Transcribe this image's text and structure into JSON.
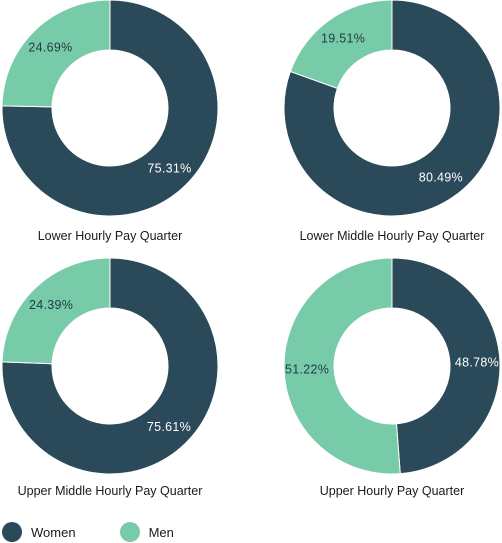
{
  "colors": {
    "Women": "#2b4a59",
    "Men": "#78cba8",
    "label_on_dark": "#ffffff",
    "label_on_light": "#1f3b48"
  },
  "legend": [
    {
      "name": "Women",
      "color": "#2b4a59"
    },
    {
      "name": "Men",
      "color": "#78cba8"
    }
  ],
  "chart_data": [
    {
      "type": "pie",
      "variant": "donut",
      "title": "Lower Hourly Pay Quarter",
      "slices": [
        {
          "name": "Women",
          "value": 75.31,
          "label": "75.31%"
        },
        {
          "name": "Men",
          "value": 24.69,
          "label": "24.69%"
        }
      ]
    },
    {
      "type": "pie",
      "variant": "donut",
      "title": "Lower Middle Hourly Pay Quarter",
      "slices": [
        {
          "name": "Women",
          "value": 80.49,
          "label": "80.49%"
        },
        {
          "name": "Men",
          "value": 19.51,
          "label": "19.51%"
        }
      ]
    },
    {
      "type": "pie",
      "variant": "donut",
      "title": "Upper Middle Hourly Pay Quarter",
      "slices": [
        {
          "name": "Women",
          "value": 75.61,
          "label": "75.61%"
        },
        {
          "name": "Men",
          "value": 24.39,
          "label": "24.39%"
        }
      ]
    },
    {
      "type": "pie",
      "variant": "donut",
      "title": "Upper Hourly Pay Quarter",
      "slices": [
        {
          "name": "Women",
          "value": 48.78,
          "label": "48.78%"
        },
        {
          "name": "Men",
          "value": 51.22,
          "label": "51.22%"
        }
      ]
    }
  ]
}
